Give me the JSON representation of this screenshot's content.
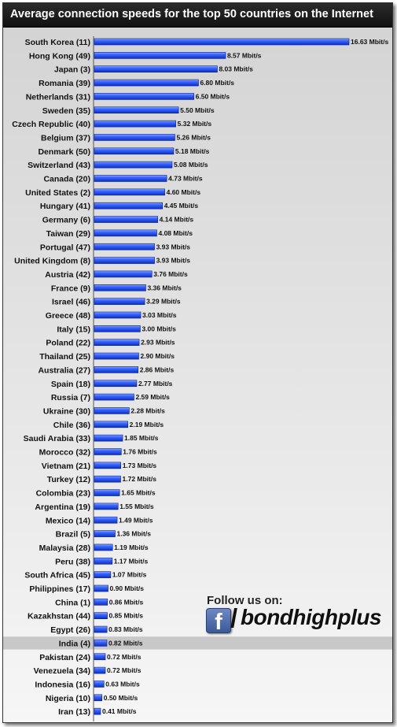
{
  "chart_data": {
    "type": "bar",
    "orientation": "horizontal",
    "title": "Average connection speeds for the top 50 countries on the Internet",
    "unit": "Mbit/s",
    "highlighted_category": "India (4)",
    "colors": {
      "bar": "#1f4ff0",
      "bar_light": "#6d8fff",
      "highlight_row": "#c8c8c8"
    },
    "categories": [
      "South Korea (11)",
      "Hong Kong (49)",
      "Japan (3)",
      "Romania (39)",
      "Netherlands (31)",
      "Sweden (35)",
      "Czech Republic (40)",
      "Belgium (37)",
      "Denmark (50)",
      "Switzerland (43)",
      "Canada (20)",
      "United States (2)",
      "Hungary (41)",
      "Germany (6)",
      "Taiwan (29)",
      "Portugal (47)",
      "United Kingdom (8)",
      "Austria (42)",
      "France (9)",
      "Israel (46)",
      "Greece (48)",
      "Italy (15)",
      "Poland (22)",
      "Thailand (25)",
      "Australia (27)",
      "Spain (18)",
      "Russia (7)",
      "Ukraine (30)",
      "Chile (36)",
      "Saudi Arabia (33)",
      "Morocco (32)",
      "Vietnam (21)",
      "Turkey (12)",
      "Colombia (23)",
      "Argentina (19)",
      "Mexico (14)",
      "Brazil (5)",
      "Malaysia (28)",
      "Peru (38)",
      "South Africa (45)",
      "Philippines (17)",
      "China (1)",
      "Kazakhstan (44)",
      "Egypt (26)",
      "India (4)",
      "Pakistan (24)",
      "Venezuela (34)",
      "Indonesia (16)",
      "Nigeria (10)",
      "Iran (13)"
    ],
    "values": [
      16.63,
      8.57,
      8.03,
      6.8,
      6.5,
      5.5,
      5.32,
      5.26,
      5.18,
      5.08,
      4.73,
      4.6,
      4.45,
      4.14,
      4.08,
      3.93,
      3.93,
      3.76,
      3.36,
      3.29,
      3.03,
      3.0,
      2.93,
      2.9,
      2.86,
      2.77,
      2.59,
      2.28,
      2.19,
      1.85,
      1.76,
      1.73,
      1.72,
      1.65,
      1.55,
      1.49,
      1.36,
      1.19,
      1.17,
      1.07,
      0.9,
      0.86,
      0.85,
      0.83,
      0.82,
      0.72,
      0.72,
      0.63,
      0.5,
      0.41
    ],
    "value_labels": [
      "16.63 Mbit/s",
      "8.57 Mbit/s",
      "8.03 Mbit/s",
      "6.80 Mbit/s",
      "6.50 Mbit/s",
      "5.50 Mbit/s",
      "5.32 Mbit/s",
      "5.26 Mbit/s",
      "5.18 Mbit/s",
      "5.08 Mbit/s",
      "4.73 Mbit/s",
      "4.60 Mbit/s",
      "4.45 Mbit/s",
      "4.14 Mbit/s",
      "4.08 Mbit/s",
      "3.93 Mbit/s",
      "3.93 Mbit/s",
      "3.76 Mbit/s",
      "3.36 Mbit/s",
      "3.29 Mbit/s",
      "3.03 Mbit/s",
      "3.00 Mbit/s",
      "2.93 Mbit/s",
      "2.90 Mbit/s",
      "2.86 Mbit/s",
      "2.77 Mbit/s",
      "2.59 Mbit/s",
      "2.28 Mbit/s",
      "2.19 Mbit/s",
      "1.85 Mbit/s",
      "1.76 Mbit/s",
      "1.73 Mbit/s",
      "1.72 Mbit/s",
      "1.65 Mbit/s",
      "1.55 Mbit/s",
      "1.49 Mbit/s",
      "1.36 Mbit/s",
      "1.19 Mbit/s",
      "1.17 Mbit/s",
      "1.07 Mbit/s",
      "0.90 Mbit/s",
      "0.86 Mbit/s",
      "0.85 Mbit/s",
      "0.83 Mbit/s",
      "0.82 Mbit/s",
      "0.72 Mbit/s",
      "0.72 Mbit/s",
      "0.63 Mbit/s",
      "0.50 Mbit/s",
      "0.41 Mbit/s"
    ],
    "xlim": [
      0,
      16.63
    ],
    "grid": false,
    "legend": "none"
  },
  "promo": {
    "follow_text": "Follow us on:",
    "facebook_icon": "facebook-icon",
    "facebook_glyph": "f",
    "slash": "/",
    "handle": "bondhighplus"
  }
}
